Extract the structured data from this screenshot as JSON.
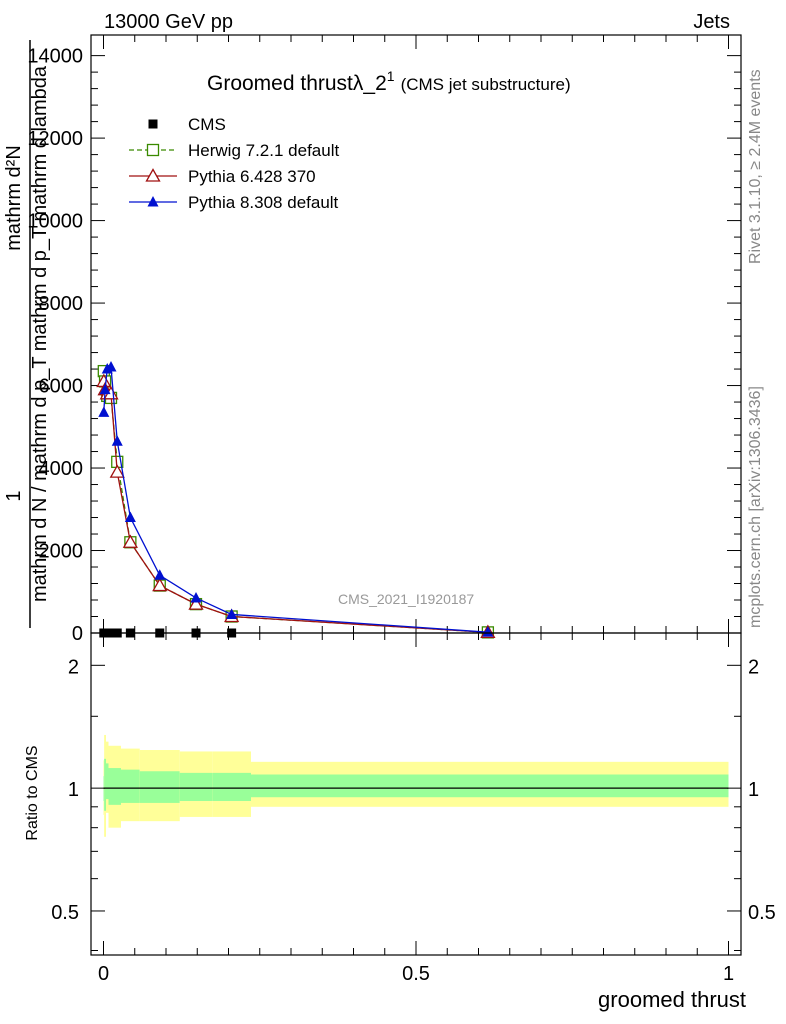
{
  "header": {
    "left": "13000 GeV pp",
    "right": "Jets"
  },
  "side": {
    "rivet": "Rivet 3.1.10, ≥ 2.4M events",
    "mcplots": "mcplots.cern.ch [arXiv:1306.3436]"
  },
  "watermark": "CMS_2021_I1920187",
  "chart_data": [
    {
      "type": "line",
      "title_main": "Groomed thrustλ_2",
      "title_sup": "1",
      "title_sub": "(CMS jet substructure)",
      "xlabel": "groomed thrust",
      "ylabel_num": "1",
      "ylabel_num2": "mathrm d²N",
      "ylabel_den": "mathrm d N / mathrm d p_T mathrm d p_T mathrm d lambda",
      "xlim": [
        -0.02,
        1.02
      ],
      "ylim": [
        0,
        14500
      ],
      "yticks": [
        0,
        2000,
        4000,
        6000,
        8000,
        10000,
        12000,
        14000
      ],
      "ytick_labels": [
        "0",
        "2000",
        "4000",
        "6000",
        "8000",
        "10000",
        "12000",
        "14000"
      ],
      "legend_position": "top-left",
      "series": [
        {
          "name": "CMS",
          "color": "#000000",
          "marker": "square-filled",
          "x": [
            0.0005,
            0.0025,
            0.006,
            0.012,
            0.022,
            0.043,
            0.09,
            0.148,
            0.205,
            0.615
          ],
          "y": [
            0,
            0,
            0,
            0,
            0,
            0,
            0,
            0,
            0,
            0
          ]
        },
        {
          "name": "Herwig 7.2.1 default",
          "color": "#3a8a00",
          "marker": "square-open",
          "dashed": true,
          "x": [
            0.0005,
            0.0025,
            0.006,
            0.012,
            0.022,
            0.043,
            0.09,
            0.148,
            0.205,
            0.615
          ],
          "y": [
            6350,
            6100,
            5750,
            5700,
            4150,
            2200,
            1150,
            700,
            400,
            15
          ]
        },
        {
          "name": "Pythia 6.428 370",
          "color": "#a01010",
          "marker": "triangle-open",
          "dashed": false,
          "x": [
            0.0005,
            0.0025,
            0.006,
            0.012,
            0.022,
            0.043,
            0.09,
            0.148,
            0.205,
            0.615
          ],
          "y": [
            6100,
            5900,
            5800,
            5800,
            3900,
            2200,
            1150,
            700,
            400,
            15
          ]
        },
        {
          "name": "Pythia 8.308 default",
          "color": "#0010d0",
          "marker": "triangle-filled",
          "dashed": false,
          "x": [
            0.0005,
            0.0025,
            0.006,
            0.012,
            0.022,
            0.043,
            0.09,
            0.148,
            0.205,
            0.615
          ],
          "y": [
            5350,
            5900,
            6400,
            6450,
            4650,
            2800,
            1400,
            850,
            450,
            20
          ]
        }
      ]
    },
    {
      "type": "area",
      "ylabel": "Ratio to CMS",
      "xlabel": "groomed thrust",
      "xlim": [
        -0.02,
        1.02
      ],
      "ylim": [
        0.39,
        2.4
      ],
      "log_scale_y": true,
      "yticks": [
        0.5,
        1,
        2
      ],
      "ytick_labels": [
        "0.5",
        "1",
        "2"
      ],
      "xticks": [
        0,
        0.5,
        1
      ],
      "xtick_labels": [
        "0",
        "0.5",
        "1"
      ],
      "reference_line": 1,
      "bins": [
        0,
        0.001,
        0.004,
        0.008,
        0.016,
        0.028,
        0.058,
        0.122,
        0.174,
        0.236,
        1.0
      ],
      "bands": {
        "outer_color": "#ffff99",
        "inner_color": "#99ff99",
        "outer_low": [
          0.86,
          0.76,
          0.87,
          0.8,
          0.8,
          0.83,
          0.83,
          0.85,
          0.85,
          0.9
        ],
        "outer_high": [
          1.17,
          1.35,
          1.3,
          1.27,
          1.27,
          1.25,
          1.24,
          1.23,
          1.23,
          1.16
        ],
        "inner_low": [
          0.93,
          0.88,
          0.94,
          0.91,
          0.91,
          0.92,
          0.92,
          0.93,
          0.93,
          0.95
        ],
        "inner_high": [
          1.07,
          1.18,
          1.15,
          1.12,
          1.12,
          1.11,
          1.1,
          1.09,
          1.09,
          1.08
        ]
      }
    }
  ]
}
